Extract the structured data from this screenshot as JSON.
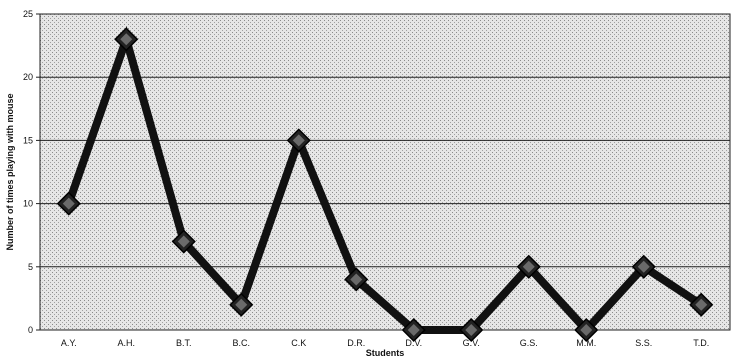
{
  "chart_data": {
    "type": "line",
    "title": "",
    "xlabel": "Students",
    "ylabel": "Number of times playing with mouse",
    "categories": [
      "A.Y.",
      "A.H.",
      "B.T.",
      "B.C.",
      "C.K",
      "D.R.",
      "D.V.",
      "G.V.",
      "G.S.",
      "M.M.",
      "S.S.",
      "T.D."
    ],
    "series": [
      {
        "values": [
          10,
          23,
          7,
          2,
          15,
          4,
          0,
          0,
          5,
          0,
          5,
          2
        ]
      }
    ],
    "ylim": [
      0,
      25
    ],
    "yticks": [
      0,
      5,
      10,
      15,
      20,
      25
    ],
    "grid": true,
    "legend": "none",
    "colors": {
      "line": "#111111",
      "marker": "#222222",
      "plot_background": "#d9d9d9"
    }
  }
}
